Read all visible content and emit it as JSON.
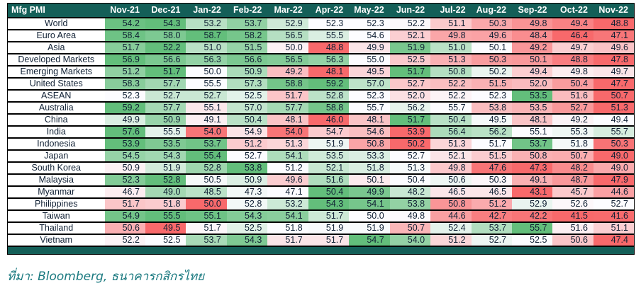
{
  "header": {
    "corner_label": "Mfg PMI"
  },
  "footer": {
    "source": "ที่มา: Bloomberg, ธนาคารกสิกรไทย"
  },
  "colors": {
    "header_bg": "#145F58",
    "header_text": "#FFFFFF",
    "bottom_bar": "#145F58",
    "scale_min_red": "#F8696B",
    "scale_mid_white": "#FCFCFF",
    "scale_max_green": "#63BE7B",
    "row_border": "#000000",
    "value_text": "#0F1F33",
    "source_text": "#1B7A80"
  },
  "chart_data": {
    "type": "heatmap",
    "title": "Mfg PMI",
    "x": [
      "Nov-21",
      "Dec-21",
      "Jan-22",
      "Feb-22",
      "Mar-22",
      "Apr-22",
      "May-22",
      "Jun-22",
      "Jul-22",
      "Aug-22",
      "Sep-22",
      "Oct-22",
      "Nov-22"
    ],
    "color_scale": "per-row 3-color scale: row min = red, row median = white, row max = green",
    "series": [
      {
        "name": "World",
        "values": [
          54.2,
          54.3,
          53.2,
          53.7,
          52.9,
          52.3,
          52.3,
          52.2,
          51.1,
          50.3,
          49.8,
          49.4,
          48.8
        ]
      },
      {
        "name": "Euro Area",
        "values": [
          58.4,
          58.0,
          58.7,
          58.2,
          56.5,
          55.5,
          54.6,
          52.1,
          49.8,
          49.6,
          48.4,
          46.4,
          47.1
        ]
      },
      {
        "name": "Asia",
        "values": [
          51.7,
          52.2,
          51.0,
          51.5,
          50.0,
          48.8,
          49.9,
          51.9,
          51.0,
          50.1,
          49.2,
          49.7,
          49.6
        ]
      },
      {
        "name": "Developed Markets",
        "values": [
          56.9,
          56.6,
          56.3,
          56.6,
          56.5,
          56.3,
          55.0,
          52.5,
          51.3,
          50.3,
          50.1,
          48.8,
          47.8
        ]
      },
      {
        "name": "Emerging Markets",
        "values": [
          51.2,
          51.7,
          50.0,
          50.9,
          49.2,
          48.1,
          49.5,
          51.7,
          50.8,
          50.2,
          49.4,
          49.8,
          49.7
        ]
      },
      {
        "name": "United States",
        "values": [
          58.3,
          57.7,
          55.5,
          57.3,
          58.8,
          59.2,
          57.0,
          52.7,
          52.2,
          51.5,
          52.0,
          50.4,
          47.7
        ]
      },
      {
        "name": "ASEAN",
        "values": [
          52.3,
          52.7,
          52.7,
          52.5,
          51.7,
          52.8,
          52.3,
          52.0,
          52.2,
          52.3,
          53.5,
          51.6,
          50.7
        ]
      },
      {
        "name": "Australia",
        "values": [
          59.2,
          57.7,
          55.1,
          57.0,
          57.7,
          58.8,
          55.7,
          56.2,
          55.7,
          53.8,
          53.5,
          52.7,
          51.3
        ]
      },
      {
        "name": "China",
        "values": [
          49.9,
          50.9,
          49.1,
          50.4,
          48.1,
          46.0,
          48.1,
          51.7,
          50.4,
          49.5,
          48.1,
          49.2,
          49.4
        ]
      },
      {
        "name": "India",
        "values": [
          57.6,
          55.5,
          54.0,
          54.9,
          54.0,
          54.7,
          54.6,
          53.9,
          56.4,
          56.2,
          55.1,
          55.3,
          55.7
        ]
      },
      {
        "name": "Indonesia",
        "values": [
          53.9,
          53.5,
          53.7,
          51.2,
          51.3,
          51.9,
          50.8,
          50.2,
          51.3,
          51.7,
          53.7,
          51.8,
          50.3
        ]
      },
      {
        "name": "Japan",
        "values": [
          54.5,
          54.3,
          55.4,
          52.7,
          54.1,
          53.5,
          53.3,
          52.7,
          52.1,
          51.5,
          50.8,
          50.7,
          49.0
        ]
      },
      {
        "name": "South Korea",
        "values": [
          50.9,
          51.9,
          52.8,
          53.8,
          51.2,
          52.1,
          51.8,
          51.3,
          49.8,
          47.6,
          47.3,
          48.2,
          49.0
        ]
      },
      {
        "name": "Malaysia",
        "values": [
          52.3,
          52.8,
          50.5,
          50.9,
          49.6,
          51.6,
          50.1,
          50.4,
          50.6,
          50.3,
          49.1,
          48.7,
          47.9
        ]
      },
      {
        "name": "Myanmar",
        "values": [
          46.7,
          49.0,
          48.5,
          47.3,
          47.1,
          50.4,
          49.9,
          48.2,
          46.5,
          46.5,
          43.1,
          45.7,
          44.6
        ]
      },
      {
        "name": "Philippines",
        "values": [
          51.7,
          51.8,
          50.0,
          52.8,
          53.2,
          54.3,
          54.1,
          53.8,
          50.8,
          51.2,
          52.9,
          52.6,
          52.7
        ]
      },
      {
        "name": "Taiwan",
        "values": [
          54.9,
          55.5,
          55.1,
          54.3,
          54.1,
          51.7,
          50.0,
          49.8,
          44.6,
          42.7,
          42.2,
          41.5,
          41.6
        ]
      },
      {
        "name": "Thailand",
        "values": [
          50.6,
          49.5,
          51.7,
          52.5,
          51.8,
          51.9,
          51.9,
          50.7,
          52.4,
          53.7,
          55.7,
          51.6,
          51.1
        ]
      },
      {
        "name": "Vietnam",
        "values": [
          52.2,
          52.5,
          53.7,
          54.3,
          51.7,
          51.7,
          54.7,
          54.0,
          51.2,
          52.7,
          52.5,
          50.6,
          47.4
        ]
      }
    ]
  }
}
